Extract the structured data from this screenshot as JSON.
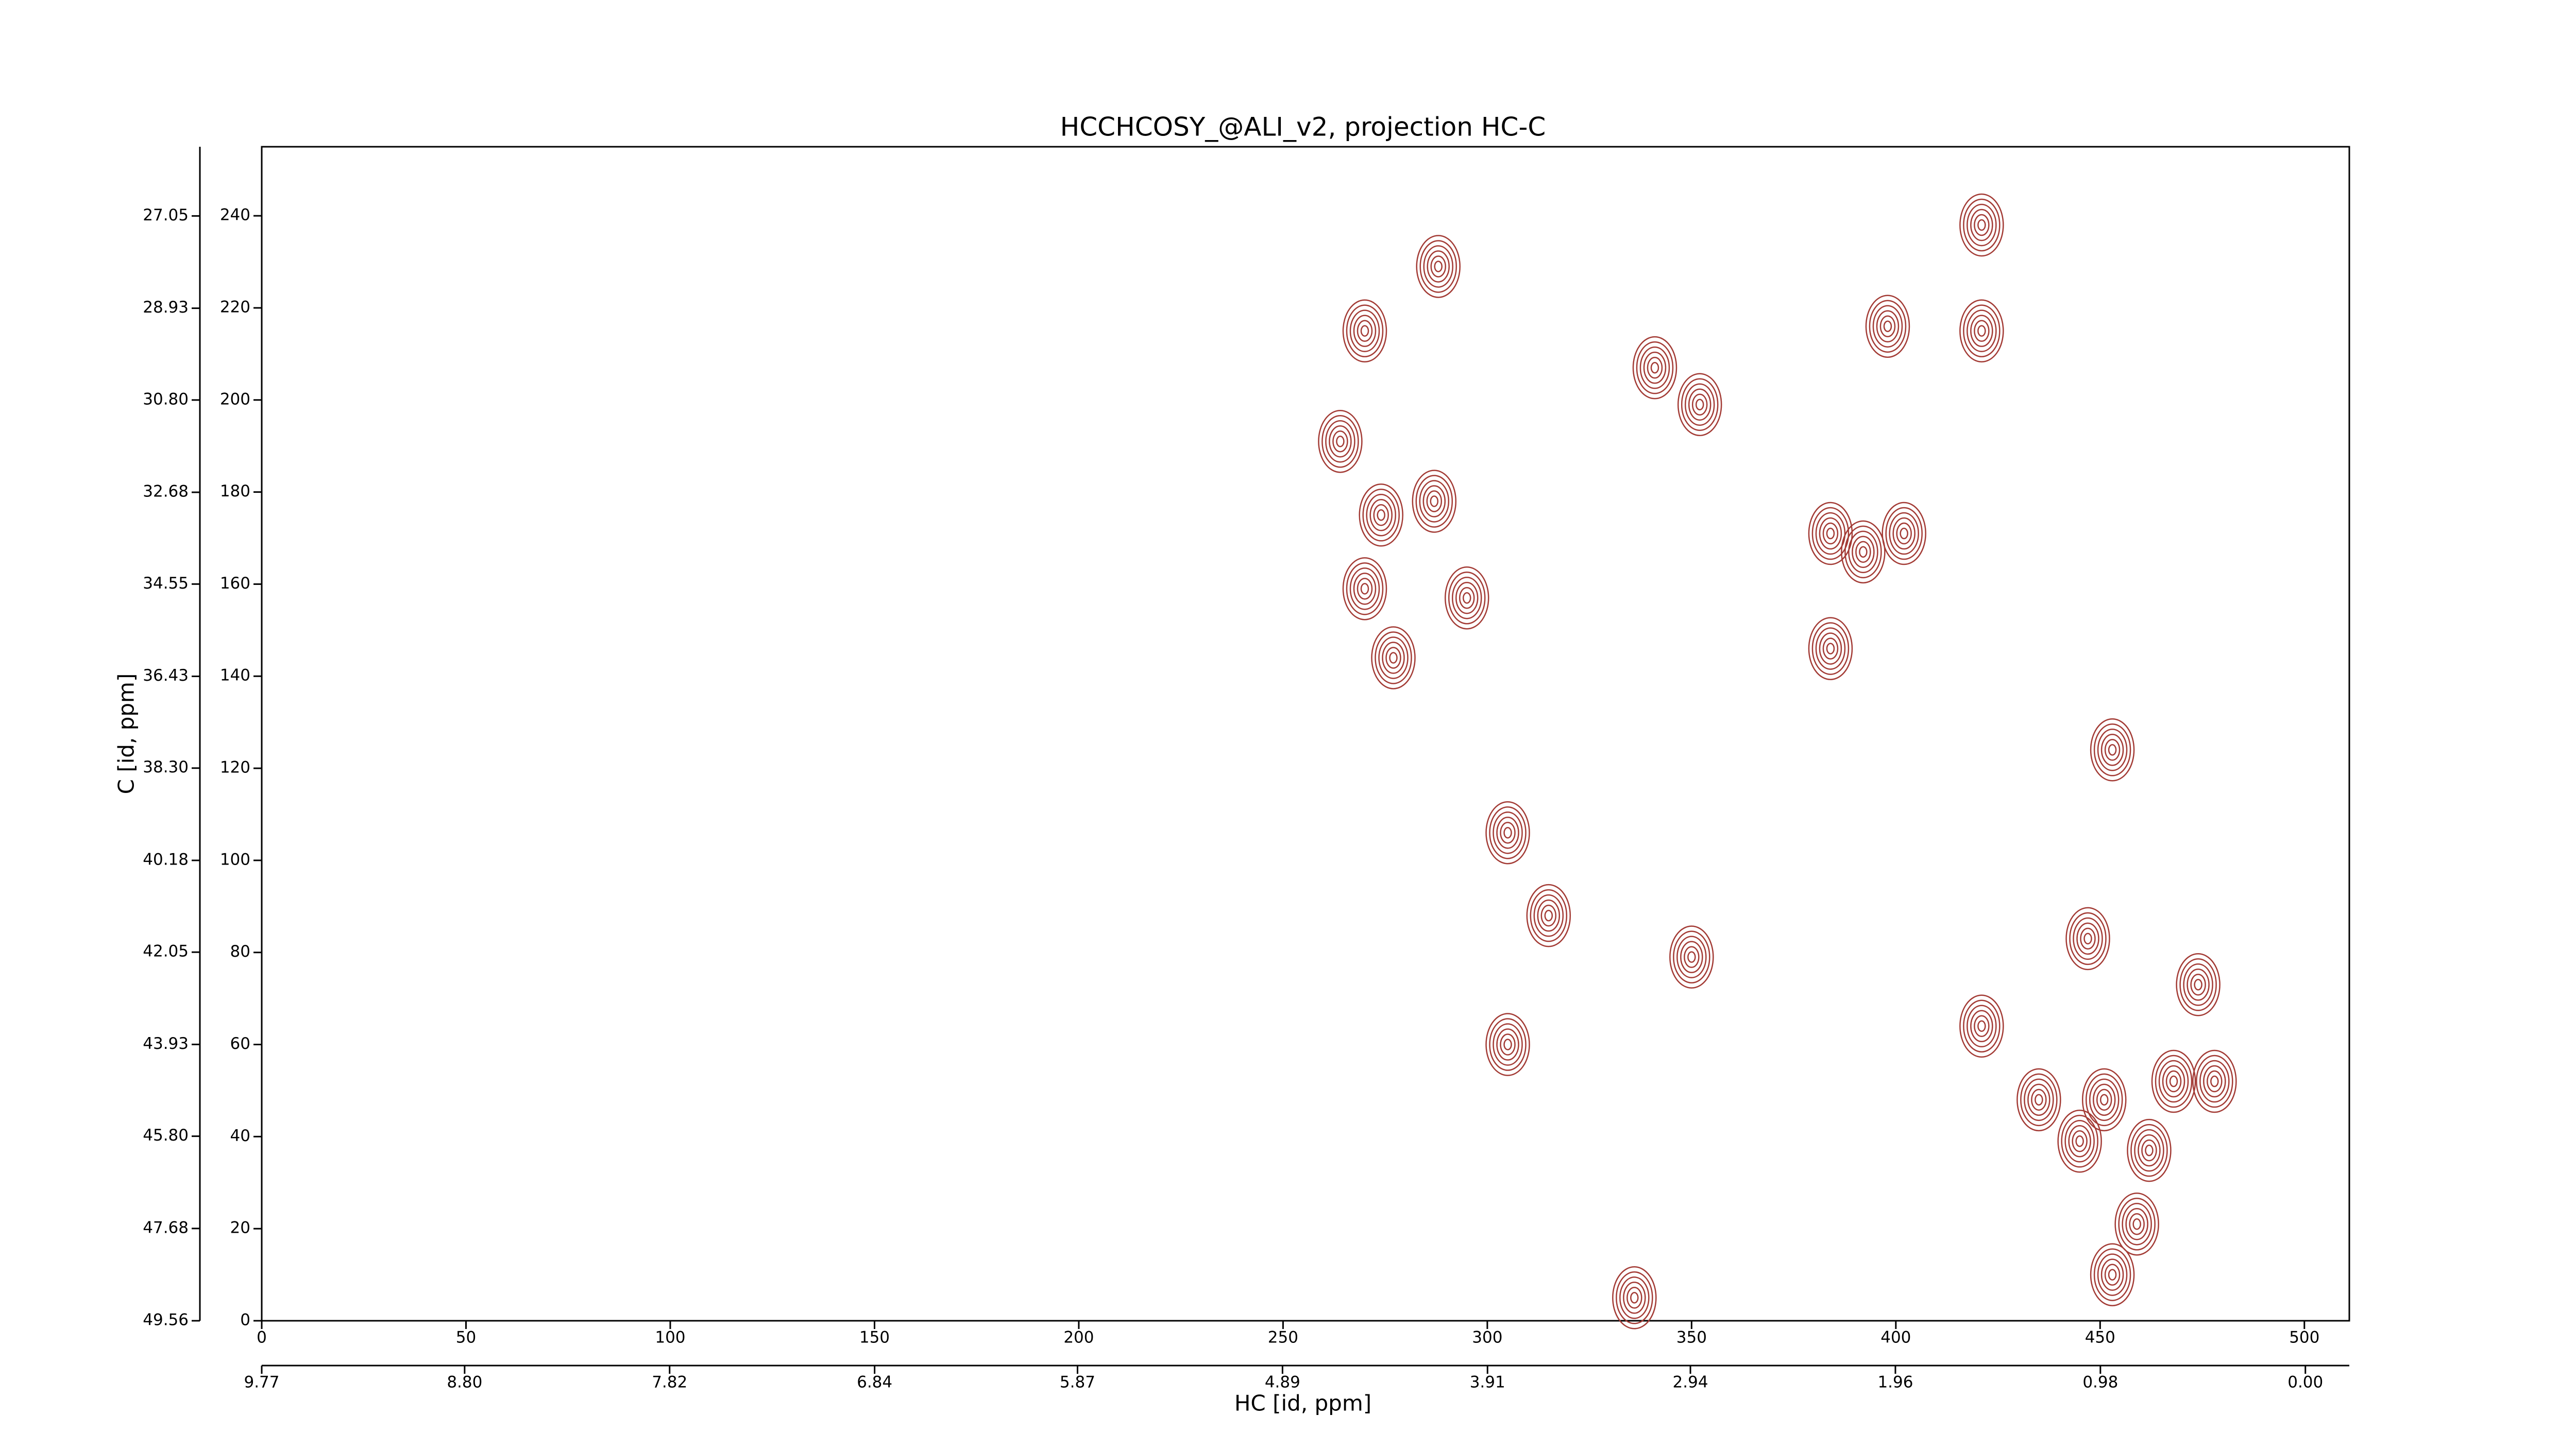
{
  "chart_data": {
    "type": "contour",
    "title": "HCCHCOSY_@ALI_v2, projection HC-C",
    "xlabel": "HC [id, ppm]",
    "ylabel": "C [id, ppm]",
    "color": "#a33b35",
    "xlim": [
      0,
      511
    ],
    "ylim": [
      0,
      255
    ],
    "xticks": [
      0,
      50,
      100,
      150,
      200,
      250,
      300,
      350,
      400,
      450,
      500
    ],
    "yticks": [
      0,
      20,
      40,
      60,
      80,
      100,
      120,
      140,
      160,
      180,
      200,
      220,
      240
    ],
    "x2lim": [
      9.77,
      -0.21
    ],
    "x2ticks": [
      9.77,
      {
        "value": 8.8,
        "label": "8.80"
      },
      7.82,
      6.84,
      5.87,
      4.89,
      3.91,
      2.94,
      1.96,
      0.98,
      {
        "value": 0,
        "label": "0.00"
      }
    ],
    "y2lim": [
      49.56,
      25.64
    ],
    "y2ticks": [
      49.56,
      47.68,
      {
        "value": 45.8,
        "label": "45.80"
      },
      43.93,
      42.05,
      40.18,
      {
        "value": 38.3,
        "label": "38.30"
      },
      36.43,
      34.55,
      32.68,
      {
        "value": 30.8,
        "label": "30.80"
      },
      28.93,
      27.05
    ],
    "peaks": {
      "x": [
        341,
        352,
        384,
        384,
        398,
        421,
        421,
        453,
        350,
        447,
        421,
        305,
        435,
        451,
        468,
        478,
        459,
        453,
        445,
        462,
        336,
        288,
        270,
        264,
        287,
        274,
        270,
        295,
        277,
        305,
        315,
        392,
        402,
        474
      ],
      "y": [
        207,
        199,
        171,
        146,
        216,
        215,
        238,
        124,
        79,
        83,
        64,
        60,
        48,
        48,
        52,
        52,
        21,
        10,
        39,
        37,
        5,
        229,
        215,
        191,
        178,
        175,
        159,
        157,
        144,
        106,
        88,
        167,
        171,
        73
      ]
    }
  }
}
